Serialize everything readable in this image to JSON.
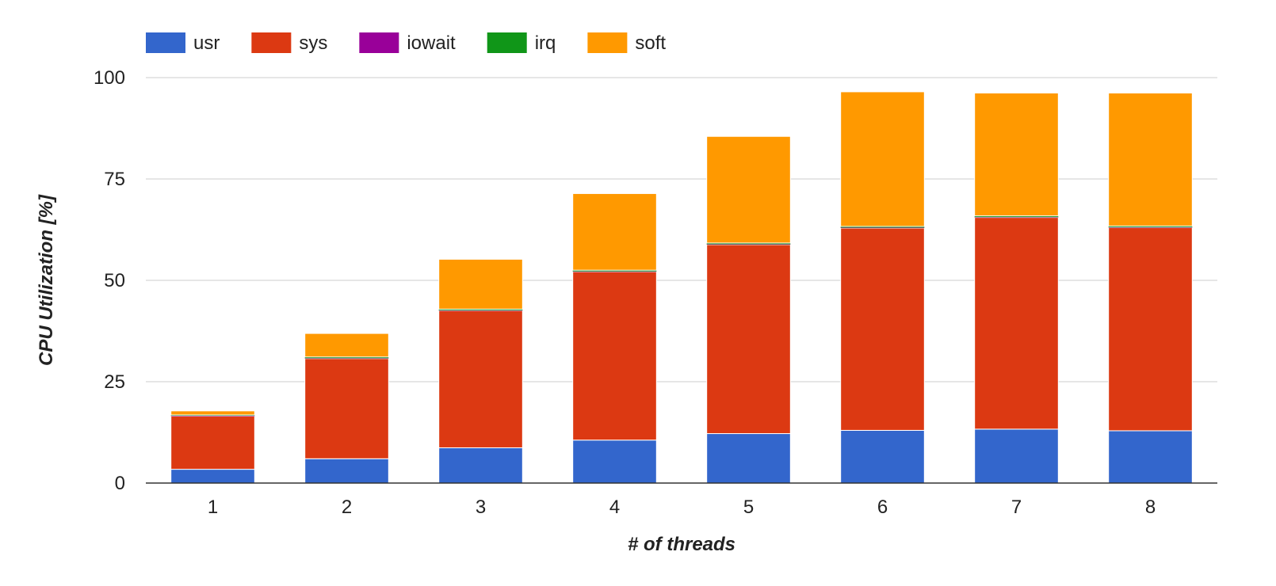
{
  "chart_data": {
    "type": "bar",
    "stacked": true,
    "title": "",
    "xlabel": "# of threads",
    "ylabel": "CPU Utilization [%]",
    "categories": [
      "1",
      "2",
      "3",
      "4",
      "5",
      "6",
      "7",
      "8"
    ],
    "ylim": [
      0,
      100
    ],
    "yticks": [
      0,
      25,
      50,
      75,
      100
    ],
    "grid": true,
    "legend_position": "top-left",
    "series": [
      {
        "name": "usr",
        "color": "#3366cc",
        "values": [
          3.4,
          6.0,
          8.7,
          10.6,
          12.2,
          13.0,
          13.3,
          12.9
        ]
      },
      {
        "name": "sys",
        "color": "#dc3912",
        "values": [
          13.1,
          24.7,
          33.8,
          41.5,
          46.6,
          49.9,
          52.2,
          50.1
        ]
      },
      {
        "name": "iowait",
        "color": "#990099",
        "values": [
          0.1,
          0.1,
          0.1,
          0.1,
          0.1,
          0.1,
          0.1,
          0.1
        ]
      },
      {
        "name": "irq",
        "color": "#109618",
        "values": [
          0.2,
          0.3,
          0.3,
          0.3,
          0.3,
          0.3,
          0.3,
          0.3
        ]
      },
      {
        "name": "soft",
        "color": "#ff9900",
        "values": [
          1.0,
          5.8,
          12.3,
          18.9,
          26.3,
          33.2,
          30.3,
          32.8
        ]
      }
    ]
  }
}
